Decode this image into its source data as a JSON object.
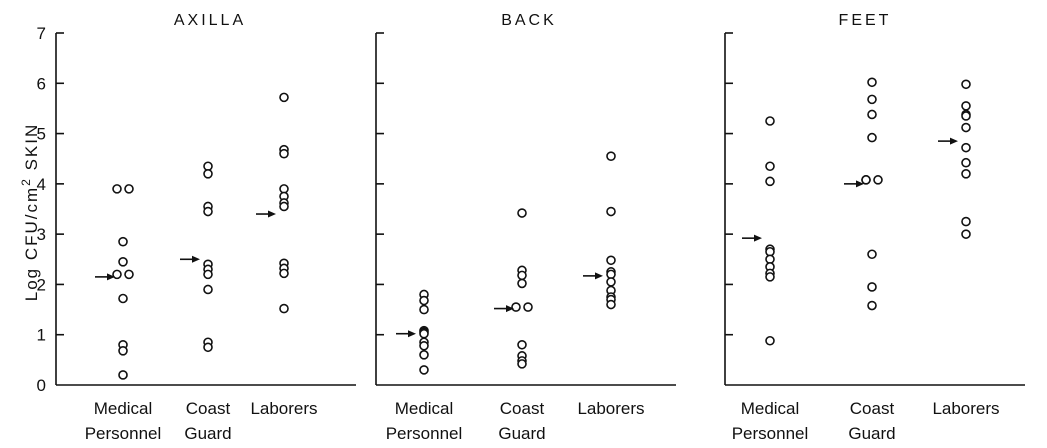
{
  "chart_data": {
    "type": "scatter",
    "ylabel": "Log CFU/cm² SKIN",
    "ylabel_main": "Log CFU/cm",
    "ylabel_sup": "2",
    "ylabel_tail": " SKIN",
    "ylim": [
      0,
      7
    ],
    "yticks": [
      "0",
      "1",
      "2",
      "3",
      "4",
      "5",
      "6",
      "7"
    ],
    "grid": false,
    "legend": "none",
    "categories": [
      {
        "line1": "Medical",
        "line2": "Personnel"
      },
      {
        "line1": "Coast",
        "line2": "Guard"
      },
      {
        "line1": "Laborers",
        "line2": ""
      }
    ],
    "panels": [
      {
        "title": "AXILLA",
        "groups": [
          {
            "values": [
              3.9,
              3.9,
              2.85,
              2.45,
              2.2,
              2.2,
              1.72,
              0.8,
              0.68,
              0.2
            ],
            "mean": 2.15
          },
          {
            "values": [
              4.35,
              4.2,
              3.55,
              3.45,
              2.4,
              2.3,
              2.2,
              1.9,
              0.85,
              0.75
            ],
            "mean": 2.5
          },
          {
            "values": [
              5.72,
              4.68,
              4.6,
              3.9,
              3.75,
              3.62,
              3.55,
              2.42,
              2.32,
              2.22,
              1.52
            ],
            "mean": 3.4
          }
        ]
      },
      {
        "title": "BACK",
        "groups": [
          {
            "values": [
              1.8,
              1.68,
              1.5,
              1.08,
              1.05,
              1.02,
              0.85,
              0.78,
              0.6,
              0.3
            ],
            "mean": 1.02
          },
          {
            "values": [
              3.42,
              2.28,
              2.18,
              2.02,
              1.55,
              1.55,
              0.8,
              0.58,
              0.48,
              0.42
            ],
            "mean": 1.52
          },
          {
            "values": [
              4.55,
              3.45,
              2.48,
              2.25,
              2.2,
              2.05,
              1.88,
              1.75,
              1.7,
              1.6
            ],
            "mean": 2.17
          }
        ]
      },
      {
        "title": "FEET",
        "groups": [
          {
            "values": [
              5.25,
              4.35,
              4.05,
              2.7,
              2.65,
              2.5,
              2.35,
              2.22,
              2.15,
              0.88
            ],
            "mean": 2.92
          },
          {
            "values": [
              6.02,
              5.68,
              5.38,
              4.92,
              4.08,
              4.08,
              4.08,
              2.6,
              1.95,
              1.58
            ],
            "mean": 4.0
          },
          {
            "values": [
              5.98,
              5.55,
              5.38,
              5.35,
              5.12,
              4.72,
              4.42,
              4.2,
              3.25,
              3.0
            ],
            "mean": 4.85
          }
        ]
      }
    ]
  }
}
